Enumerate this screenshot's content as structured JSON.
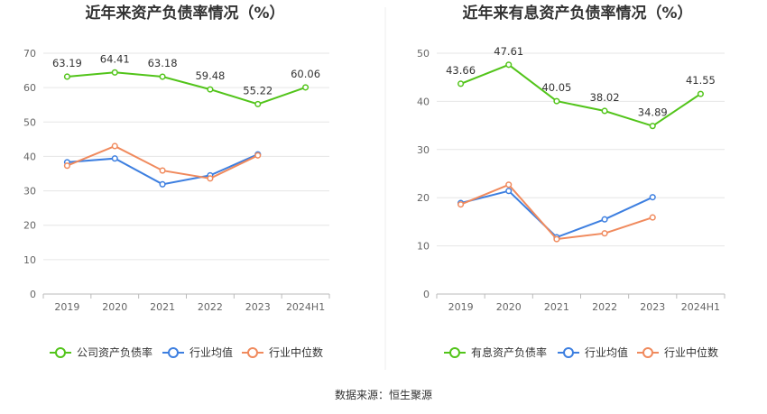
{
  "source": "数据来源：恒生聚源",
  "chart_data": [
    {
      "type": "line",
      "title": "近年来资产负债率情况（%）",
      "categories": [
        "2019",
        "2020",
        "2021",
        "2022",
        "2023",
        "2024H1"
      ],
      "ylim": [
        0,
        70
      ],
      "yticks": [
        0,
        10,
        20,
        30,
        40,
        50,
        60,
        70
      ],
      "grid": true,
      "legend_position": "bottom",
      "series": [
        {
          "name": "公司资产负债率",
          "color": "#52c41a",
          "values": [
            63.19,
            64.41,
            63.18,
            59.48,
            55.22,
            60.06
          ],
          "labels": [
            "63.19",
            "64.41",
            "63.18",
            "59.48",
            "55.22",
            "60.06"
          ]
        },
        {
          "name": "行业均值",
          "color": "#3d7fe0",
          "values": [
            38.3,
            39.4,
            31.9,
            34.5,
            40.6,
            null
          ]
        },
        {
          "name": "行业中位数",
          "color": "#f08a5d",
          "values": [
            37.3,
            43.0,
            35.9,
            33.6,
            40.3,
            null
          ]
        }
      ]
    },
    {
      "type": "line",
      "title": "近年来有息资产负债率情况（%）",
      "categories": [
        "2019",
        "2020",
        "2021",
        "2022",
        "2023",
        "2024H1"
      ],
      "ylim": [
        0,
        50
      ],
      "yticks": [
        0,
        10,
        20,
        30,
        40,
        50
      ],
      "grid": true,
      "legend_position": "bottom",
      "series": [
        {
          "name": "有息资产负债率",
          "color": "#52c41a",
          "values": [
            43.66,
            47.61,
            40.05,
            38.02,
            34.89,
            41.55
          ],
          "labels": [
            "43.66",
            "47.61",
            "40.05",
            "38.02",
            "34.89",
            "41.55"
          ]
        },
        {
          "name": "行业均值",
          "color": "#3d7fe0",
          "values": [
            18.9,
            21.4,
            11.8,
            15.5,
            20.1,
            null
          ]
        },
        {
          "name": "行业中位数",
          "color": "#f08a5d",
          "values": [
            18.6,
            22.7,
            11.4,
            12.6,
            15.9,
            null
          ]
        }
      ]
    }
  ]
}
